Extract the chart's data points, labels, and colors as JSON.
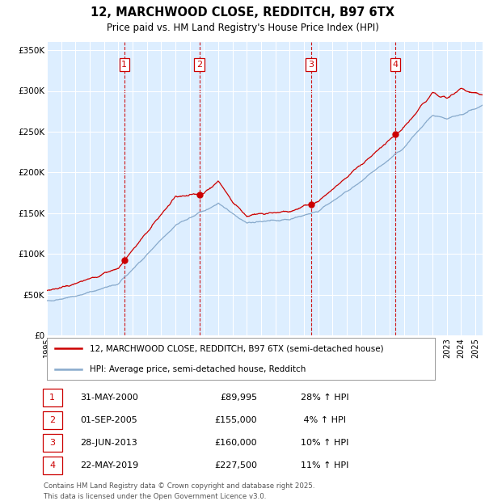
{
  "title": "12, MARCHWOOD CLOSE, REDDITCH, B97 6TX",
  "subtitle": "Price paid vs. HM Land Registry's House Price Index (HPI)",
  "legend_line1": "12, MARCHWOOD CLOSE, REDDITCH, B97 6TX (semi-detached house)",
  "legend_line2": "HPI: Average price, semi-detached house, Redditch",
  "footer1": "Contains HM Land Registry data © Crown copyright and database right 2025.",
  "footer2": "This data is licensed under the Open Government Licence v3.0.",
  "red_color": "#cc0000",
  "blue_color": "#88aacc",
  "background_color": "#ffffff",
  "plot_bg_color": "#ddeeff",
  "grid_color": "#ffffff",
  "sale_points": [
    {
      "num": 1,
      "year": 2000.42,
      "price": 89995,
      "date": "31-MAY-2000",
      "pct": "28%",
      "dir": "↑"
    },
    {
      "num": 2,
      "year": 2005.67,
      "price": 155000,
      "date": "01-SEP-2005",
      "pct": "4%",
      "dir": "↑"
    },
    {
      "num": 3,
      "year": 2013.49,
      "price": 160000,
      "date": "28-JUN-2013",
      "pct": "10%",
      "dir": "↑"
    },
    {
      "num": 4,
      "year": 2019.39,
      "price": 227500,
      "date": "22-MAY-2019",
      "pct": "11%",
      "dir": "↑"
    }
  ],
  "ylim": [
    0,
    360000
  ],
  "xlim_start": 1995,
  "xlim_end": 2025.5,
  "yticks": [
    0,
    50000,
    100000,
    150000,
    200000,
    250000,
    300000,
    350000
  ],
  "ytick_labels": [
    "£0",
    "£50K",
    "£100K",
    "£150K",
    "£200K",
    "£250K",
    "£300K",
    "£350K"
  ],
  "xticks": [
    1995,
    1996,
    1997,
    1998,
    1999,
    2000,
    2001,
    2002,
    2003,
    2004,
    2005,
    2006,
    2007,
    2008,
    2009,
    2010,
    2011,
    2012,
    2013,
    2014,
    2015,
    2016,
    2017,
    2018,
    2019,
    2020,
    2021,
    2022,
    2023,
    2024,
    2025
  ],
  "table_rows": [
    [
      "1",
      "31-MAY-2000",
      "£89,995",
      "28% ↑ HPI"
    ],
    [
      "2",
      "01-SEP-2005",
      "£155,000",
      " 4% ↑ HPI"
    ],
    [
      "3",
      "28-JUN-2013",
      "£160,000",
      "10% ↑ HPI"
    ],
    [
      "4",
      "22-MAY-2019",
      "£227,500",
      "11% ↑ HPI"
    ]
  ]
}
